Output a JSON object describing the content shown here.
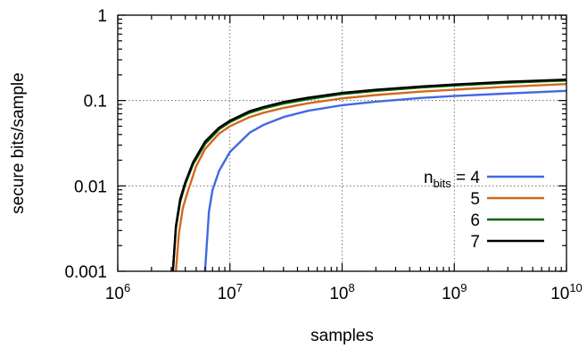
{
  "chart_data": {
    "type": "line",
    "xlabel": "samples",
    "ylabel": "secure bits/sample",
    "x_scale": "log",
    "y_scale": "log",
    "xlim": [
      1000000,
      10000000000
    ],
    "ylim": [
      0.001,
      1
    ],
    "grid": true,
    "legend_position": "right",
    "x_ticks": [
      {
        "base": "10",
        "exp": "6",
        "value": 1000000
      },
      {
        "base": "10",
        "exp": "7",
        "value": 10000000
      },
      {
        "base": "10",
        "exp": "8",
        "value": 100000000
      },
      {
        "base": "10",
        "exp": "9",
        "value": 1000000000
      },
      {
        "base": "10",
        "exp": "10",
        "value": 10000000000
      }
    ],
    "y_ticks": [
      {
        "label": "1",
        "value": 1
      },
      {
        "label": "0.1",
        "value": 0.1
      },
      {
        "label": "0.01",
        "value": 0.01
      },
      {
        "label": "0.001",
        "value": 0.001
      }
    ],
    "legend": {
      "prefix": "n",
      "subscript": "bits",
      "equals": " = "
    },
    "series": [
      {
        "name": "4",
        "color": "#4169e1",
        "x": [
          6000000,
          6500000,
          7000000,
          8000000,
          10000000,
          15000000,
          20000000,
          30000000,
          50000000,
          100000000,
          200000000,
          500000000,
          1000000000,
          3000000000,
          10000000000
        ],
        "y": [
          0.001,
          0.005,
          0.009,
          0.015,
          0.025,
          0.042,
          0.052,
          0.064,
          0.076,
          0.088,
          0.097,
          0.107,
          0.113,
          0.121,
          0.13
        ]
      },
      {
        "name": "5",
        "color": "#d2691e",
        "x": [
          3300000,
          3500000,
          3800000,
          4200000,
          5000000,
          6000000,
          8000000,
          10000000,
          15000000,
          20000000,
          30000000,
          50000000,
          100000000,
          200000000,
          500000000,
          1000000000,
          3000000000,
          10000000000
        ],
        "y": [
          0.001,
          0.0027,
          0.0055,
          0.0085,
          0.017,
          0.027,
          0.041,
          0.05,
          0.064,
          0.072,
          0.082,
          0.093,
          0.106,
          0.116,
          0.127,
          0.134,
          0.145,
          0.156
        ]
      },
      {
        "name": "6",
        "color": "#006400",
        "x": [
          3100000,
          3300000,
          3600000,
          4000000,
          4700000,
          6000000,
          8000000,
          10000000,
          15000000,
          20000000,
          30000000,
          50000000,
          100000000,
          200000000,
          500000000,
          1000000000,
          3000000000,
          10000000000
        ],
        "y": [
          0.001,
          0.0032,
          0.0065,
          0.0105,
          0.018,
          0.031,
          0.046,
          0.056,
          0.072,
          0.081,
          0.092,
          0.104,
          0.119,
          0.13,
          0.142,
          0.15,
          0.162,
          0.172
        ]
      },
      {
        "name": "7",
        "color": "#000000",
        "x": [
          3100000,
          3300000,
          3600000,
          4000000,
          4700000,
          6000000,
          8000000,
          10000000,
          15000000,
          20000000,
          30000000,
          50000000,
          100000000,
          200000000,
          500000000,
          1000000000,
          3000000000,
          10000000000
        ],
        "y": [
          0.001,
          0.0034,
          0.007,
          0.011,
          0.019,
          0.033,
          0.048,
          0.058,
          0.075,
          0.084,
          0.096,
          0.108,
          0.123,
          0.134,
          0.146,
          0.154,
          0.166,
          0.176
        ]
      }
    ]
  }
}
